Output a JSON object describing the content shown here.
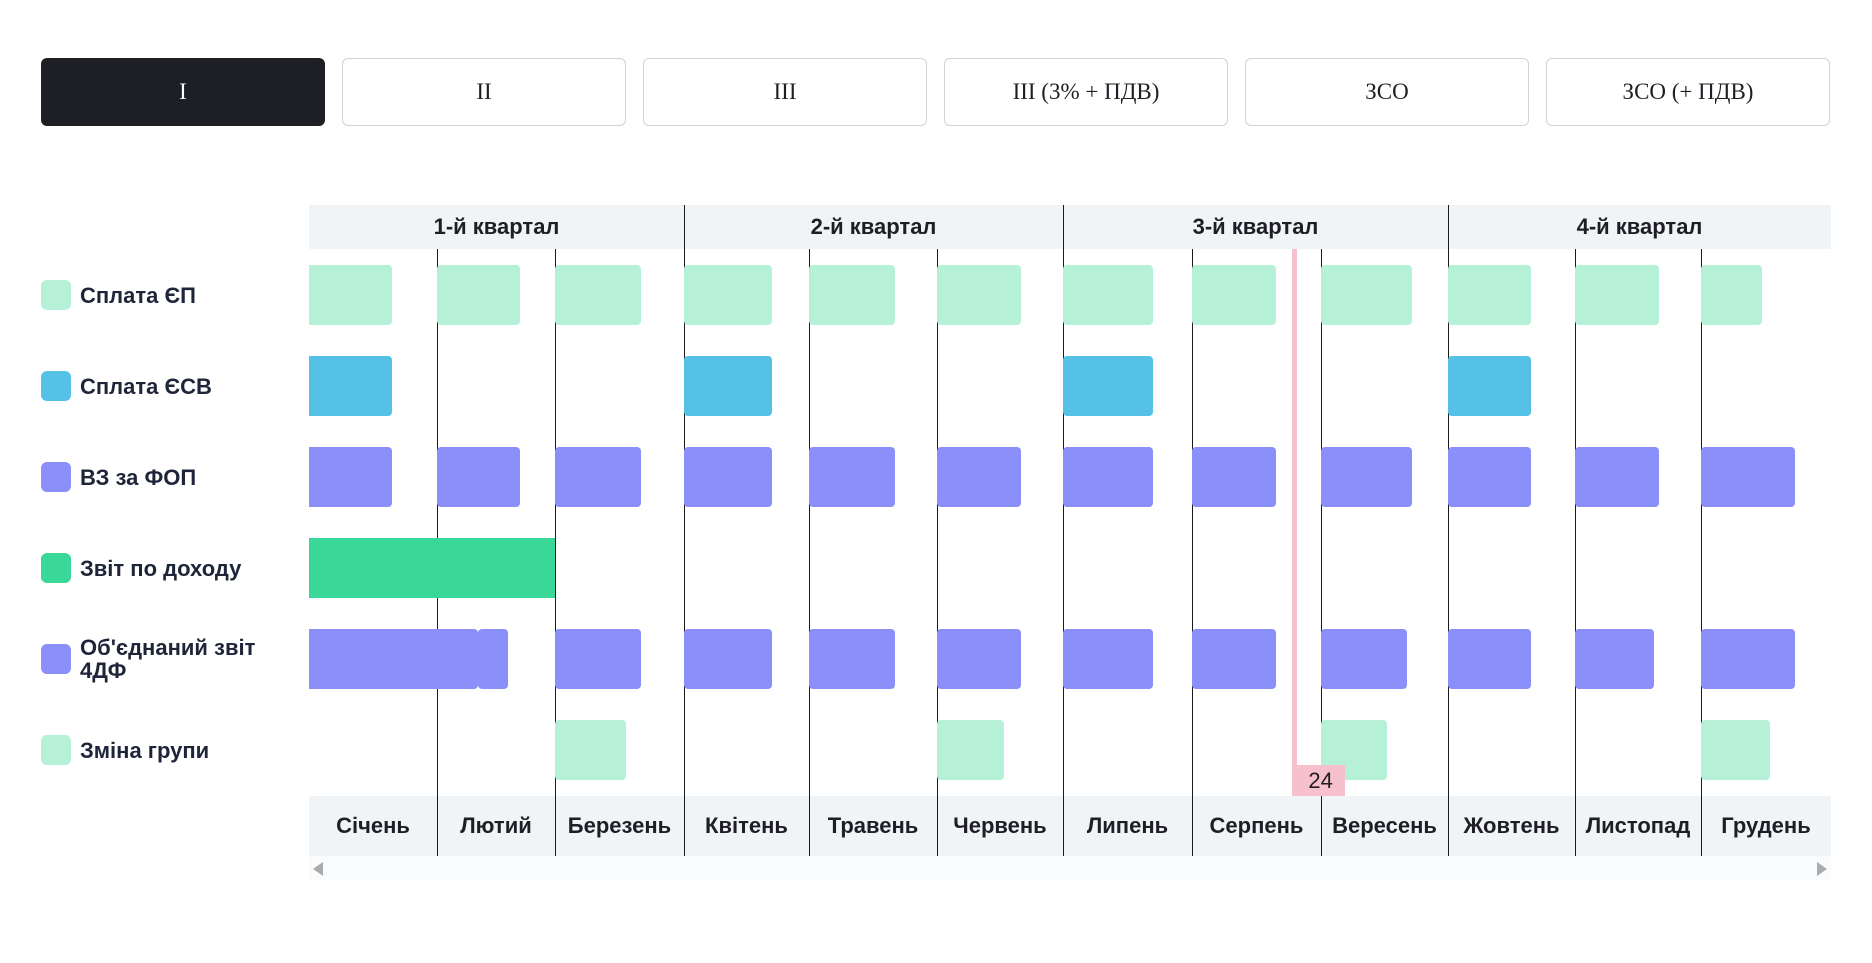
{
  "tabs": [
    "I",
    "II",
    "III",
    "III (3% + ПДВ)",
    "ЗСО",
    "ЗСО (+ ПДВ)"
  ],
  "active_tab": 0,
  "quarters": [
    "1-й квартал",
    "2-й квартал",
    "3-й квартал",
    "4-й квартал"
  ],
  "months": [
    "Січень",
    "Лютий",
    "Березень",
    "Квітень",
    "Травень",
    "Червень",
    "Липень",
    "Серпень",
    "Вересень",
    "Жовтень",
    "Листопад",
    "Грудень"
  ],
  "rows": [
    {
      "label": "Сплата ЄП",
      "color": "#b5f0d7"
    },
    {
      "label": "Сплата ЄСВ",
      "color": "#55c1e6"
    },
    {
      "label": "ВЗ за ФОП",
      "color": "#8a8ffa"
    },
    {
      "label": "Звіт по доходу",
      "color": "#3ad898"
    },
    {
      "label": "Об'єднаний звіт 4ДФ",
      "color": "#8a8ffa"
    },
    {
      "label": "Зміна групи",
      "color": "#b5f0d7"
    }
  ],
  "today_label": "24",
  "chart_data": {
    "type": "gantt",
    "categories": [
      "Січень",
      "Лютий",
      "Березень",
      "Квітень",
      "Травень",
      "Червень",
      "Липень",
      "Серпень",
      "Вересень",
      "Жовтень",
      "Листопад",
      "Грудень"
    ],
    "series": [
      {
        "name": "Сплата ЄП",
        "tasks": [
          [
            0,
            0.65
          ],
          [
            1,
            1.7
          ],
          [
            2,
            2.67
          ],
          [
            3,
            3.7
          ],
          [
            4,
            4.67
          ],
          [
            5,
            5.67
          ],
          [
            6,
            6.7
          ],
          [
            7,
            7.65
          ],
          [
            8,
            8.72
          ],
          [
            9,
            9.65
          ],
          [
            10,
            10.67
          ],
          [
            11,
            11.47
          ]
        ]
      },
      {
        "name": "Сплата ЄСВ",
        "tasks": [
          [
            0,
            0.65
          ],
          [
            3,
            3.7
          ],
          [
            6,
            6.7
          ],
          [
            9,
            9.65
          ]
        ]
      },
      {
        "name": "ВЗ за ФОП",
        "tasks": [
          [
            0,
            0.65
          ],
          [
            1,
            1.7
          ],
          [
            2,
            2.67
          ],
          [
            3,
            3.7
          ],
          [
            4,
            4.67
          ],
          [
            5,
            5.67
          ],
          [
            6,
            6.7
          ],
          [
            7,
            7.65
          ],
          [
            8,
            8.72
          ],
          [
            9,
            9.65
          ],
          [
            10,
            10.67
          ],
          [
            11,
            11.72
          ]
        ]
      },
      {
        "name": "Звіт по доходу",
        "tasks": [
          [
            0,
            2.0
          ]
        ]
      },
      {
        "name": "Об'єднаний звіт 4ДФ",
        "tasks": [
          [
            0,
            1.35
          ],
          [
            1.35,
            1.6
          ],
          [
            2,
            2.67
          ],
          [
            3,
            3.7
          ],
          [
            4,
            4.67
          ],
          [
            5,
            5.67
          ],
          [
            6,
            6.7
          ],
          [
            7,
            7.65
          ],
          [
            8,
            8.68
          ],
          [
            9,
            9.65
          ],
          [
            10,
            10.63
          ],
          [
            11,
            11.72
          ]
        ]
      },
      {
        "name": "Зміна групи",
        "tasks": [
          [
            2,
            2.55
          ],
          [
            5,
            5.53
          ],
          [
            8,
            8.52
          ],
          [
            11,
            11.53
          ]
        ]
      }
    ],
    "today": 7.78
  }
}
